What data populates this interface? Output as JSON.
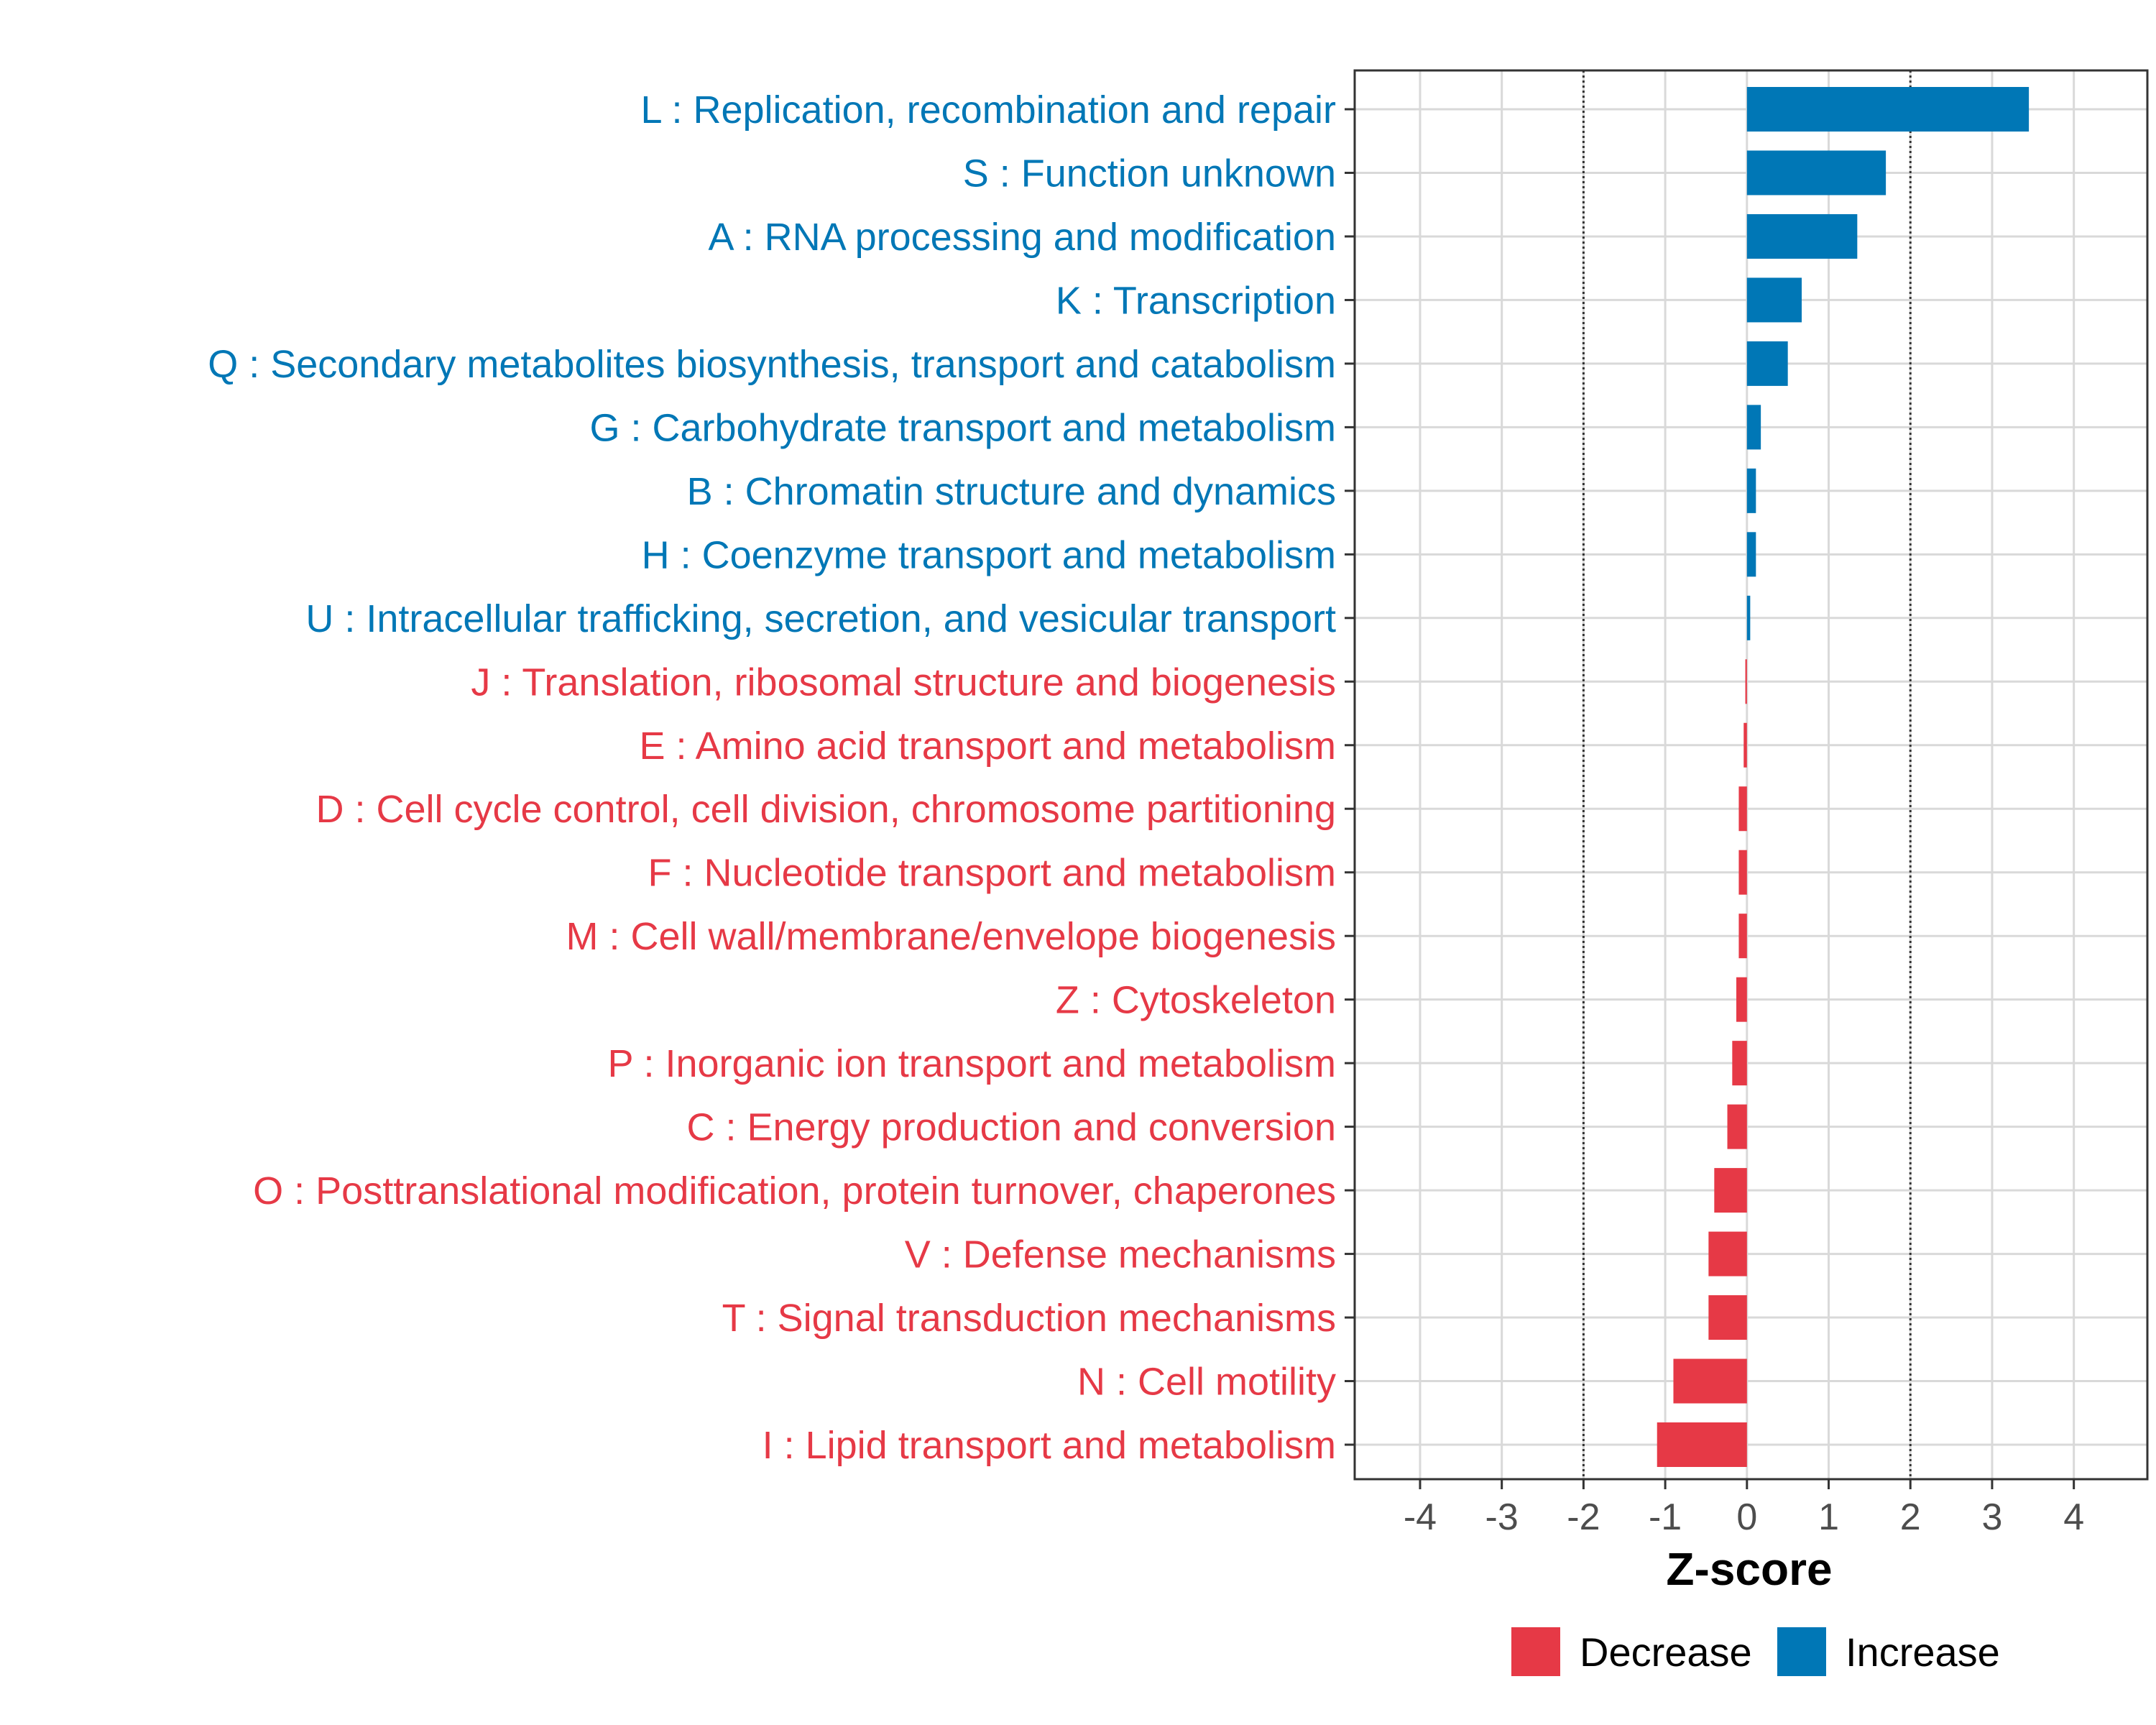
{
  "chart_data": {
    "type": "bar",
    "orientation": "horizontal",
    "title": "",
    "xlabel": "Z-score",
    "ylabel": "",
    "xlim": [
      -4.8,
      4.9
    ],
    "xticks": [
      "-4",
      "-3",
      "-2",
      "-1",
      "0",
      "1",
      "2",
      "3",
      "4"
    ],
    "reference_lines": [
      -2,
      2
    ],
    "grid": true,
    "legend_position": "bottom",
    "colors": {
      "Decrease": "#E63946",
      "Increase": "#0077B6",
      "grid": "#d9d9d9"
    },
    "legend": [
      {
        "name": "Decrease",
        "color": "#E63946"
      },
      {
        "name": "Increase",
        "color": "#0077B6"
      }
    ],
    "categories": [
      "L : Replication, recombination and repair",
      "S : Function unknown",
      "A : RNA processing and modification",
      "K : Transcription",
      "Q : Secondary metabolites biosynthesis, transport and catabolism",
      "G : Carbohydrate transport and metabolism",
      "B : Chromatin structure and dynamics",
      "H : Coenzyme transport and metabolism",
      "U : Intracellular trafficking, secretion, and vesicular transport",
      "J : Translation, ribosomal structure and biogenesis",
      "E : Amino acid transport and metabolism",
      "D : Cell cycle control, cell division, chromosome partitioning",
      "F : Nucleotide transport and metabolism",
      "M : Cell wall/membrane/envelope biogenesis",
      "Z : Cytoskeleton",
      "P : Inorganic ion transport and metabolism",
      "C : Energy production and conversion",
      "O : Posttranslational modification, protein turnover, chaperones",
      "V : Defense mechanisms",
      "T : Signal transduction mechanisms",
      "N : Cell motility",
      "I : Lipid transport and metabolism"
    ],
    "values": [
      3.45,
      1.7,
      1.35,
      0.67,
      0.5,
      0.17,
      0.11,
      0.11,
      0.04,
      -0.02,
      -0.04,
      -0.1,
      -0.1,
      -0.1,
      -0.13,
      -0.18,
      -0.24,
      -0.4,
      -0.47,
      -0.47,
      -0.9,
      -1.1
    ],
    "groups": [
      "Increase",
      "Increase",
      "Increase",
      "Increase",
      "Increase",
      "Increase",
      "Increase",
      "Increase",
      "Increase",
      "Decrease",
      "Decrease",
      "Decrease",
      "Decrease",
      "Decrease",
      "Decrease",
      "Decrease",
      "Decrease",
      "Decrease",
      "Decrease",
      "Decrease",
      "Decrease",
      "Decrease"
    ]
  }
}
